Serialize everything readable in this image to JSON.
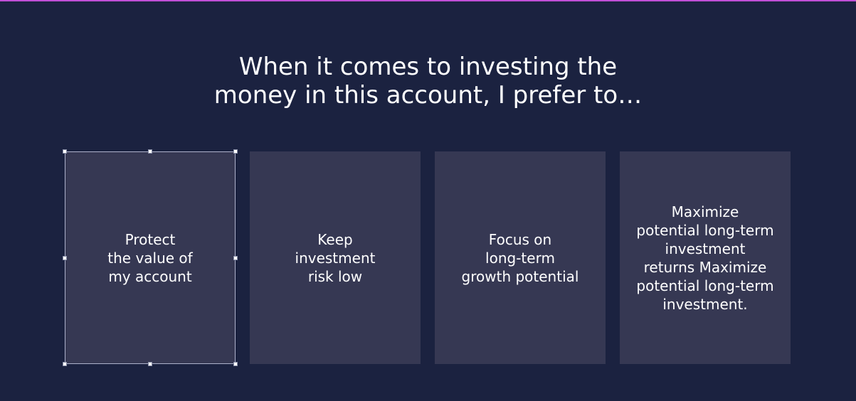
{
  "question": {
    "text": "When it comes to investing the\nmoney in this account, I prefer to…"
  },
  "options": [
    {
      "label": "Protect\nthe value of\nmy account",
      "selected": true
    },
    {
      "label": "Keep\ninvestment\nrisk low",
      "selected": false
    },
    {
      "label": "Focus on\nlong-term\ngrowth potential",
      "selected": false
    },
    {
      "label": "Maximize\npotential long-term\ninvestment\nreturns Maximize\npotential long-term\ninvestment.",
      "selected": false
    }
  ],
  "colors": {
    "background": "#1b2240",
    "card": "#363853",
    "accent_border": "#c04fd6",
    "text": "#ffffff"
  }
}
